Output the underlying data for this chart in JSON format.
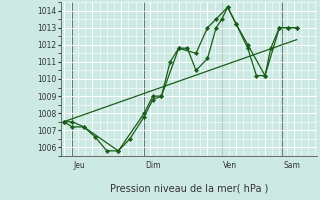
{
  "xlabel": "Pression niveau de la mer( hPa )",
  "bg_color": "#cceae3",
  "grid_color": "#aaddcc",
  "line_color": "#1a5c1a",
  "marker_color": "#1a5c1a",
  "ylim": [
    1005.5,
    1014.5
  ],
  "xlim": [
    -0.1,
    8.8
  ],
  "yticks": [
    1006,
    1007,
    1008,
    1009,
    1010,
    1011,
    1012,
    1013,
    1014
  ],
  "day_labels": [
    "Jeu",
    "Dim",
    "Ven",
    "Sam"
  ],
  "day_positions": [
    0.3,
    2.8,
    5.5,
    7.6
  ],
  "series1": [
    [
      0.0,
      1007.5
    ],
    [
      0.3,
      1007.5
    ],
    [
      0.7,
      1007.2
    ],
    [
      1.1,
      1006.6
    ],
    [
      1.5,
      1005.8
    ],
    [
      1.9,
      1005.8
    ],
    [
      2.3,
      1006.5
    ],
    [
      2.8,
      1007.8
    ],
    [
      3.1,
      1008.8
    ],
    [
      3.4,
      1009.0
    ],
    [
      3.7,
      1011.0
    ],
    [
      4.0,
      1011.8
    ],
    [
      4.3,
      1011.8
    ],
    [
      4.6,
      1010.5
    ],
    [
      5.0,
      1011.2
    ],
    [
      5.3,
      1013.0
    ],
    [
      5.5,
      1013.5
    ],
    [
      5.7,
      1014.2
    ],
    [
      6.0,
      1013.2
    ],
    [
      6.4,
      1011.8
    ],
    [
      6.7,
      1010.2
    ],
    [
      7.0,
      1010.2
    ],
    [
      7.2,
      1011.8
    ],
    [
      7.5,
      1013.0
    ],
    [
      7.8,
      1013.0
    ],
    [
      8.1,
      1013.0
    ]
  ],
  "series2": [
    [
      0.0,
      1007.5
    ],
    [
      0.3,
      1007.2
    ],
    [
      0.7,
      1007.2
    ],
    [
      1.9,
      1005.8
    ],
    [
      2.8,
      1008.0
    ],
    [
      3.1,
      1009.0
    ],
    [
      3.4,
      1009.0
    ],
    [
      4.0,
      1011.8
    ],
    [
      4.6,
      1011.5
    ],
    [
      5.0,
      1013.0
    ],
    [
      5.3,
      1013.5
    ],
    [
      5.7,
      1014.2
    ],
    [
      6.0,
      1013.2
    ],
    [
      6.4,
      1012.0
    ],
    [
      7.0,
      1010.2
    ],
    [
      7.5,
      1013.0
    ],
    [
      7.8,
      1013.0
    ],
    [
      8.1,
      1013.0
    ]
  ],
  "trend_line": [
    [
      0.0,
      1007.5
    ],
    [
      8.1,
      1012.3
    ]
  ]
}
